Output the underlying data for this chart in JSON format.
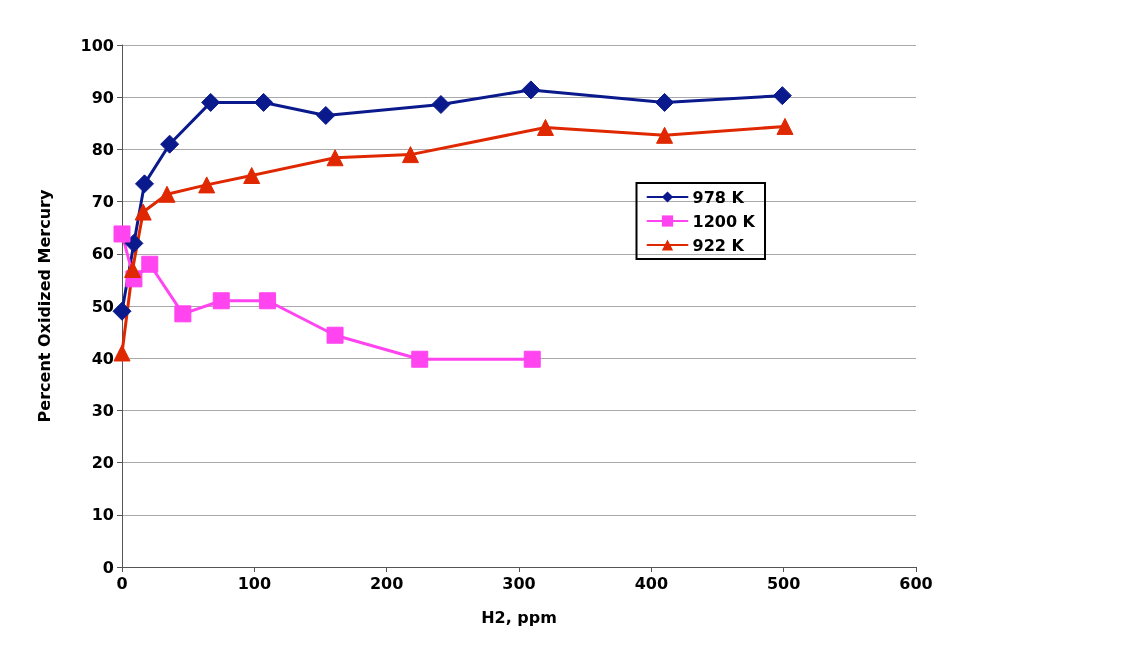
{
  "chart_data": {
    "type": "line",
    "xlabel": "H2, ppm",
    "ylabel": "Percent Oxidized Mercury",
    "xlim": [
      0,
      600
    ],
    "xticks": [
      0,
      100,
      200,
      300,
      400,
      500,
      600
    ],
    "ylim": [
      0,
      100
    ],
    "yticks": [
      0,
      10,
      20,
      30,
      40,
      50,
      60,
      70,
      80,
      90,
      100
    ],
    "grid": "y",
    "legend": "right",
    "line_style": "solid",
    "series": [
      {
        "name": "978 K",
        "color": "#0a1a8c",
        "marker": "diamond",
        "x": [
          0,
          9,
          17,
          36,
          67,
          107,
          154,
          241,
          309,
          410,
          499
        ],
        "values": [
          49,
          62,
          73.4,
          81,
          89,
          89,
          86.5,
          88.6,
          91.4,
          89,
          90.3
        ]
      },
      {
        "name": "1200 K",
        "color": "#ff44f0",
        "marker": "square",
        "x": [
          0,
          9,
          21,
          46,
          75,
          110,
          161,
          225,
          310
        ],
        "values": [
          63.8,
          55.2,
          58,
          48.5,
          51,
          51,
          44.4,
          39.8,
          39.8
        ]
      },
      {
        "name": "922 K",
        "color": "#e02800",
        "marker": "triangle",
        "x": [
          0,
          8,
          16,
          34,
          64,
          98,
          161,
          218,
          320,
          410,
          501
        ],
        "values": [
          41,
          57,
          68,
          71.4,
          73.2,
          75,
          78.4,
          79,
          84.2,
          82.7,
          84.4
        ]
      }
    ]
  }
}
